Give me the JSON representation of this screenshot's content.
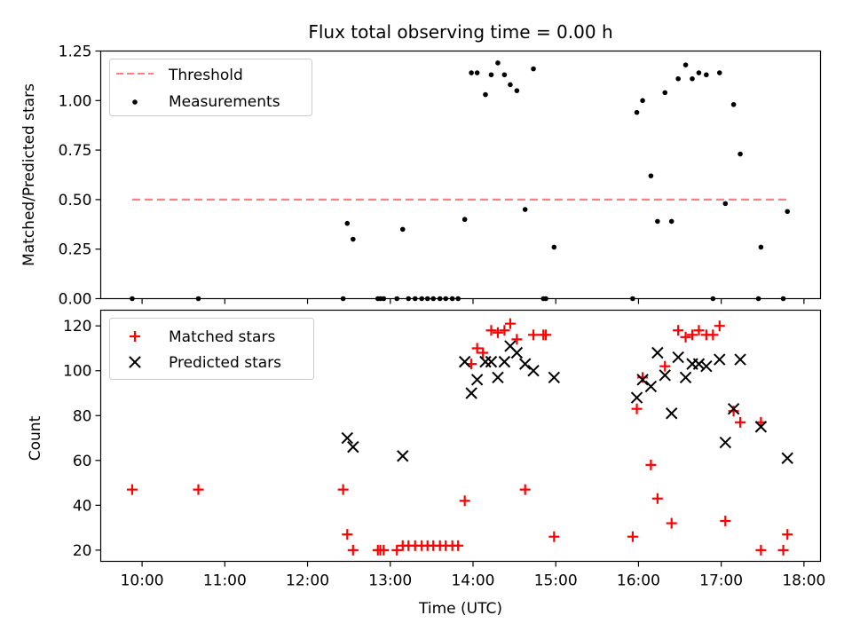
{
  "chart_data": [
    {
      "type": "scatter",
      "title": "Flux total observing time = 0.00 h",
      "xlabel": "",
      "ylabel": "Matched/Predicted stars",
      "xlim": [
        9.5,
        18.2
      ],
      "ylim": [
        0,
        1.25
      ],
      "yticks": [
        0.0,
        0.25,
        0.5,
        0.75,
        1.0,
        1.25
      ],
      "yticklabels": [
        "0.00",
        "0.25",
        "0.50",
        "0.75",
        "1.00",
        "1.25"
      ],
      "legend_position": "upper-left",
      "threshold": {
        "name": "Threshold",
        "value": 0.5,
        "x": [
          9.88,
          17.8
        ],
        "color": "#ff7f7f",
        "style": "dashed"
      },
      "series": [
        {
          "name": "Measurements",
          "color": "#000000",
          "marker": "dot",
          "x": [
            9.88,
            10.68,
            12.43,
            12.48,
            12.55,
            12.85,
            12.88,
            12.92,
            13.08,
            13.15,
            13.22,
            13.3,
            13.38,
            13.45,
            13.52,
            13.6,
            13.67,
            13.75,
            13.82,
            13.9,
            13.98,
            14.05,
            14.15,
            14.22,
            14.3,
            14.38,
            14.45,
            14.53,
            14.63,
            14.73,
            14.85,
            14.88,
            14.98,
            15.93,
            15.98,
            16.05,
            16.15,
            16.23,
            16.32,
            16.4,
            16.48,
            16.57,
            16.65,
            16.73,
            16.82,
            16.9,
            16.98,
            17.05,
            17.15,
            17.23,
            17.45,
            17.48,
            17.75,
            17.8
          ],
          "y": [
            0.0,
            0.0,
            0.0,
            0.38,
            0.3,
            0.0,
            0.0,
            0.0,
            0.0,
            0.35,
            0.0,
            0.0,
            0.0,
            0.0,
            0.0,
            0.0,
            0.0,
            0.0,
            0.0,
            0.4,
            1.14,
            1.14,
            1.03,
            1.13,
            1.19,
            1.13,
            1.08,
            1.05,
            0.45,
            1.16,
            0.0,
            0.0,
            0.26,
            0.0,
            0.94,
            1.0,
            0.62,
            0.39,
            1.04,
            0.39,
            1.11,
            1.18,
            1.11,
            1.14,
            1.13,
            0.0,
            1.14,
            0.48,
            0.98,
            0.73,
            0.0,
            0.26,
            0.0,
            0.44
          ]
        }
      ]
    },
    {
      "type": "scatter",
      "title": "",
      "xlabel": "Time (UTC)",
      "ylabel": "Count",
      "xlim": [
        9.5,
        18.2
      ],
      "ylim": [
        15,
        127
      ],
      "yticks": [
        20,
        40,
        60,
        80,
        100,
        120
      ],
      "yticklabels": [
        "20",
        "40",
        "60",
        "80",
        "100",
        "120"
      ],
      "xticks": [
        10,
        11,
        12,
        13,
        14,
        15,
        16,
        17,
        18
      ],
      "xticklabels": [
        "10:00",
        "11:00",
        "12:00",
        "13:00",
        "14:00",
        "15:00",
        "16:00",
        "17:00",
        "18:00"
      ],
      "legend_position": "upper-left",
      "series": [
        {
          "name": "Matched stars",
          "color": "#ff0000",
          "marker": "plus",
          "x": [
            9.88,
            10.68,
            12.43,
            12.48,
            12.55,
            12.85,
            12.88,
            12.92,
            13.08,
            13.15,
            13.22,
            13.3,
            13.38,
            13.45,
            13.52,
            13.6,
            13.67,
            13.75,
            13.82,
            13.9,
            13.98,
            14.05,
            14.12,
            14.22,
            14.3,
            14.38,
            14.45,
            14.53,
            14.63,
            14.73,
            14.85,
            14.88,
            14.98,
            15.93,
            15.98,
            16.05,
            16.15,
            16.23,
            16.32,
            16.4,
            16.48,
            16.57,
            16.65,
            16.73,
            16.82,
            16.9,
            16.98,
            17.05,
            17.15,
            17.23,
            17.48,
            17.48,
            17.75,
            17.8
          ],
          "y": [
            47,
            47,
            47,
            27,
            20,
            20,
            20,
            20,
            20,
            22,
            22,
            22,
            22,
            22,
            22,
            22,
            22,
            22,
            22,
            42,
            103,
            110,
            108,
            118,
            117,
            118,
            121,
            114,
            47,
            116,
            116,
            116,
            26,
            26,
            83,
            97,
            58,
            43,
            102,
            32,
            118,
            115,
            116,
            118,
            116,
            116,
            120,
            33,
            82,
            77,
            77,
            20,
            20,
            27
          ]
        },
        {
          "name": "Predicted stars",
          "color": "#000000",
          "marker": "x",
          "x": [
            12.48,
            12.55,
            13.15,
            13.9,
            13.98,
            14.05,
            14.15,
            14.22,
            14.3,
            14.38,
            14.45,
            14.53,
            14.63,
            14.73,
            14.98,
            15.98,
            16.05,
            16.15,
            16.23,
            16.32,
            16.4,
            16.48,
            16.57,
            16.65,
            16.73,
            16.82,
            16.98,
            17.05,
            17.15,
            17.23,
            17.48,
            17.8
          ],
          "y": [
            70,
            66,
            62,
            104,
            90,
            96,
            104,
            104,
            97,
            104,
            111,
            108,
            103,
            100,
            97,
            88,
            96,
            93,
            108,
            98,
            81,
            106,
            97,
            103,
            103,
            102,
            105,
            68,
            83,
            105,
            75,
            61
          ]
        }
      ]
    }
  ]
}
